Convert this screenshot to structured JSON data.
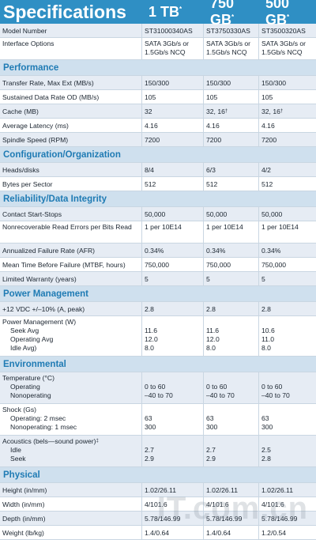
{
  "header": {
    "title": "Specifications",
    "cap1": "1 TB",
    "cap2": "750 GB",
    "cap3": "500 GB",
    "mark": "*"
  },
  "rows_top": [
    {
      "label": "Model Number",
      "a": "ST31000340AS",
      "b": "ST3750330AS",
      "c": "ST3500320AS"
    },
    {
      "label": "Interface Options",
      "a": "SATA 3Gb/s or 1.5Gb/s NCQ",
      "b": "SATA 3Gb/s or 1.5Gb/s NCQ",
      "c": "SATA 3Gb/s or 1.5Gb/s NCQ"
    }
  ],
  "sections": {
    "performance": "Performance",
    "configuration": "Configuration/Organization",
    "reliability": "Reliability/Data Integrity",
    "power": "Power Management",
    "environmental": "Environmental",
    "physical": "Physical"
  },
  "performance": [
    {
      "label": "Transfer Rate, Max Ext (MB/s)",
      "a": "150/300",
      "b": "150/300",
      "c": "150/300"
    },
    {
      "label": "Sustained Data Rate OD (MB/s)",
      "a": "105",
      "b": "105",
      "c": "105"
    },
    {
      "label": "Cache (MB)",
      "a": "32",
      "b": "32, 16",
      "c": "32, 16",
      "dagger": "†"
    },
    {
      "label": "Average Latency (ms)",
      "a": "4.16",
      "b": "4.16",
      "c": "4.16"
    },
    {
      "label": "Spindle Speed (RPM)",
      "a": "7200",
      "b": "7200",
      "c": "7200"
    }
  ],
  "configuration": [
    {
      "label": "Heads/disks",
      "a": "8/4",
      "b": "6/3",
      "c": "4/2"
    },
    {
      "label": "Bytes per Sector",
      "a": "512",
      "b": "512",
      "c": "512"
    }
  ],
  "reliability": [
    {
      "label": "Contact Start-Stops",
      "a": "50,000",
      "b": "50,000",
      "c": "50,000"
    },
    {
      "label": "Nonrecoverable Read Errors per Bits Read",
      "a": "1 per 10E14",
      "b": "1 per 10E14",
      "c": "1 per 10E14"
    },
    {
      "label": "Annualized Failure Rate (AFR)",
      "a": "0.34%",
      "b": "0.34%",
      "c": "0.34%"
    },
    {
      "label": "Mean Time Before Failure (MTBF, hours)",
      "a": "750,000",
      "b": "750,000",
      "c": "750,000"
    },
    {
      "label": "Limited Warranty (years)",
      "a": "5",
      "b": "5",
      "c": "5"
    }
  ],
  "power": {
    "vdc": {
      "label": "+12 VDC +/–10% (A, peak)",
      "a": "2.8",
      "b": "2.8",
      "c": "2.8"
    },
    "pm": {
      "label": "Power Management (W)",
      "seek": "Seek Avg",
      "operating": "Operating Avg",
      "idle": "Idle Avg)",
      "a": [
        "11.6",
        "12.0",
        "8.0"
      ],
      "b": [
        "11.6",
        "12.0",
        "8.0"
      ],
      "c": [
        "10.6",
        "11.0",
        "8.0"
      ]
    }
  },
  "environmental": {
    "temp": {
      "label": "Temperature (°C)",
      "operating": "Operating",
      "nonoperating": "Nonoperating",
      "a": [
        "0 to 60",
        "–40 to 70"
      ],
      "b": [
        "0 to 60",
        "–40 to 70"
      ],
      "c": [
        "0 to 60",
        "–40 to 70"
      ]
    },
    "shock": {
      "label": "Shock (Gs)",
      "operating": "Operating: 2 msec",
      "nonoperating": "Nonoperating: 1 msec",
      "a": [
        "63",
        "300"
      ],
      "b": [
        "63",
        "300"
      ],
      "c": [
        "63",
        "300"
      ]
    },
    "acoustics": {
      "label": "Acoustics (bels—sound power)",
      "mark": "‡",
      "idle": "Idle",
      "seek": "Seek",
      "a": [
        "2.7",
        "2.9"
      ],
      "b": [
        "2.7",
        "2.9"
      ],
      "c": [
        "2.5",
        "2.8"
      ]
    }
  },
  "physical": [
    {
      "label": "Height (in/mm)",
      "a": "1.02/26.11",
      "b": "1.02/26.11",
      "c": "1.02/26.11"
    },
    {
      "label": "Width (in/mm)",
      "a": "4/101.6",
      "b": "4/101.6",
      "c": "4/101.6"
    },
    {
      "label": "Depth (in/mm)",
      "a": "5.78/146.99",
      "b": "5.78/146.99",
      "c": "5.78/146.99"
    },
    {
      "label": "Weight (lb/kg)",
      "a": "1.4/0.64",
      "b": "1.4/0.64",
      "c": "1.2/0.54"
    }
  ],
  "watermark": "IT.com.cn"
}
